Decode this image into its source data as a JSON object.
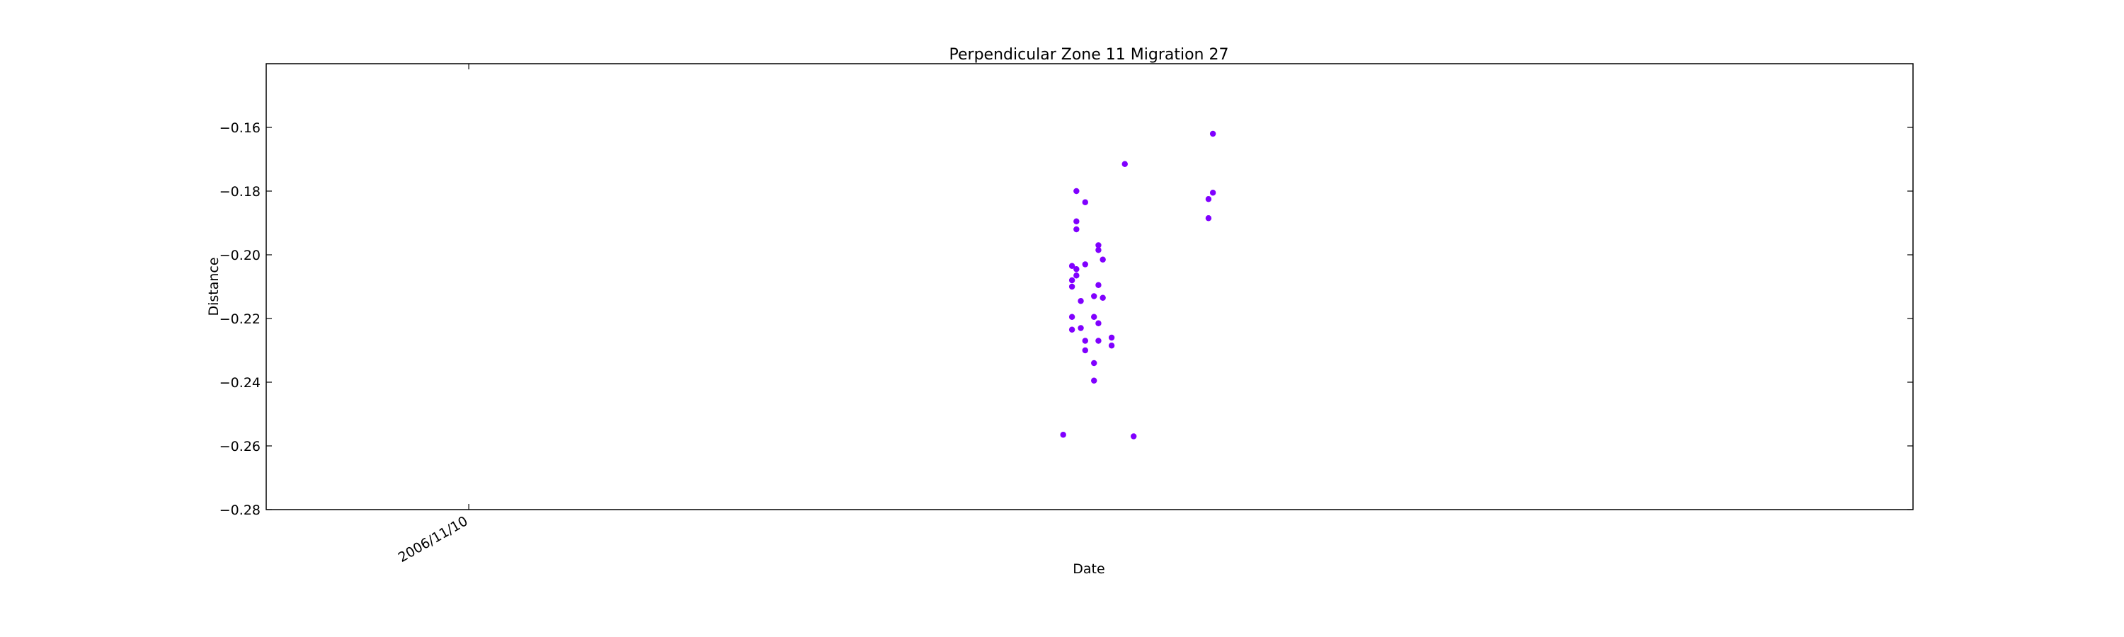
{
  "chart_data": {
    "type": "scatter",
    "title": "Perpendicular Zone 11 Migration 27",
    "xlabel": "Date",
    "ylabel": "Distance",
    "ylim": [
      -0.28,
      -0.14
    ],
    "yticks": [
      -0.28,
      -0.26,
      -0.24,
      -0.22,
      -0.2,
      -0.18,
      -0.16
    ],
    "ytick_labels": [
      "−0.28",
      "−0.26",
      "−0.24",
      "−0.22",
      "−0.20",
      "−0.18",
      "−0.16"
    ],
    "xlim": [
      "2006/09/25",
      "2007/10/04"
    ],
    "xticks": [
      "2006/11/10"
    ],
    "xtick_labels": [
      "2006/11/10"
    ],
    "grid": false,
    "legend": "none",
    "marker_color": "#8000ff",
    "series": [
      {
        "points": [
          {
            "x": "2007/03/25",
            "y": -0.2565
          },
          {
            "x": "2007/03/27",
            "y": -0.2195
          },
          {
            "x": "2007/03/27",
            "y": -0.2235
          },
          {
            "x": "2007/03/27",
            "y": -0.208
          },
          {
            "x": "2007/03/27",
            "y": -0.21
          },
          {
            "x": "2007/03/27",
            "y": -0.2035
          },
          {
            "x": "2007/03/28",
            "y": -0.192
          },
          {
            "x": "2007/03/28",
            "y": -0.2045
          },
          {
            "x": "2007/03/28",
            "y": -0.2065
          },
          {
            "x": "2007/03/28",
            "y": -0.1895
          },
          {
            "x": "2007/03/28",
            "y": -0.18
          },
          {
            "x": "2007/03/29",
            "y": -0.2145
          },
          {
            "x": "2007/03/29",
            "y": -0.223
          },
          {
            "x": "2007/03/30",
            "y": -0.203
          },
          {
            "x": "2007/03/30",
            "y": -0.227
          },
          {
            "x": "2007/03/30",
            "y": -0.1835
          },
          {
            "x": "2007/03/30",
            "y": -0.23
          },
          {
            "x": "2007/04/01",
            "y": -0.234
          },
          {
            "x": "2007/04/01",
            "y": -0.2395
          },
          {
            "x": "2007/04/01",
            "y": -0.2195
          },
          {
            "x": "2007/04/01",
            "y": -0.213
          },
          {
            "x": "2007/04/02",
            "y": -0.1985
          },
          {
            "x": "2007/04/02",
            "y": -0.197
          },
          {
            "x": "2007/04/02",
            "y": -0.2095
          },
          {
            "x": "2007/04/02",
            "y": -0.2215
          },
          {
            "x": "2007/04/02",
            "y": -0.227
          },
          {
            "x": "2007/04/03",
            "y": -0.2015
          },
          {
            "x": "2007/04/03",
            "y": -0.2135
          },
          {
            "x": "2007/04/05",
            "y": -0.226
          },
          {
            "x": "2007/04/05",
            "y": -0.2285
          },
          {
            "x": "2007/04/08",
            "y": -0.1715
          },
          {
            "x": "2007/04/10",
            "y": -0.257
          },
          {
            "x": "2007/04/27",
            "y": -0.1885
          },
          {
            "x": "2007/04/27",
            "y": -0.1825
          },
          {
            "x": "2007/04/28",
            "y": -0.162
          },
          {
            "x": "2007/04/28",
            "y": -0.1805
          }
        ]
      }
    ]
  }
}
